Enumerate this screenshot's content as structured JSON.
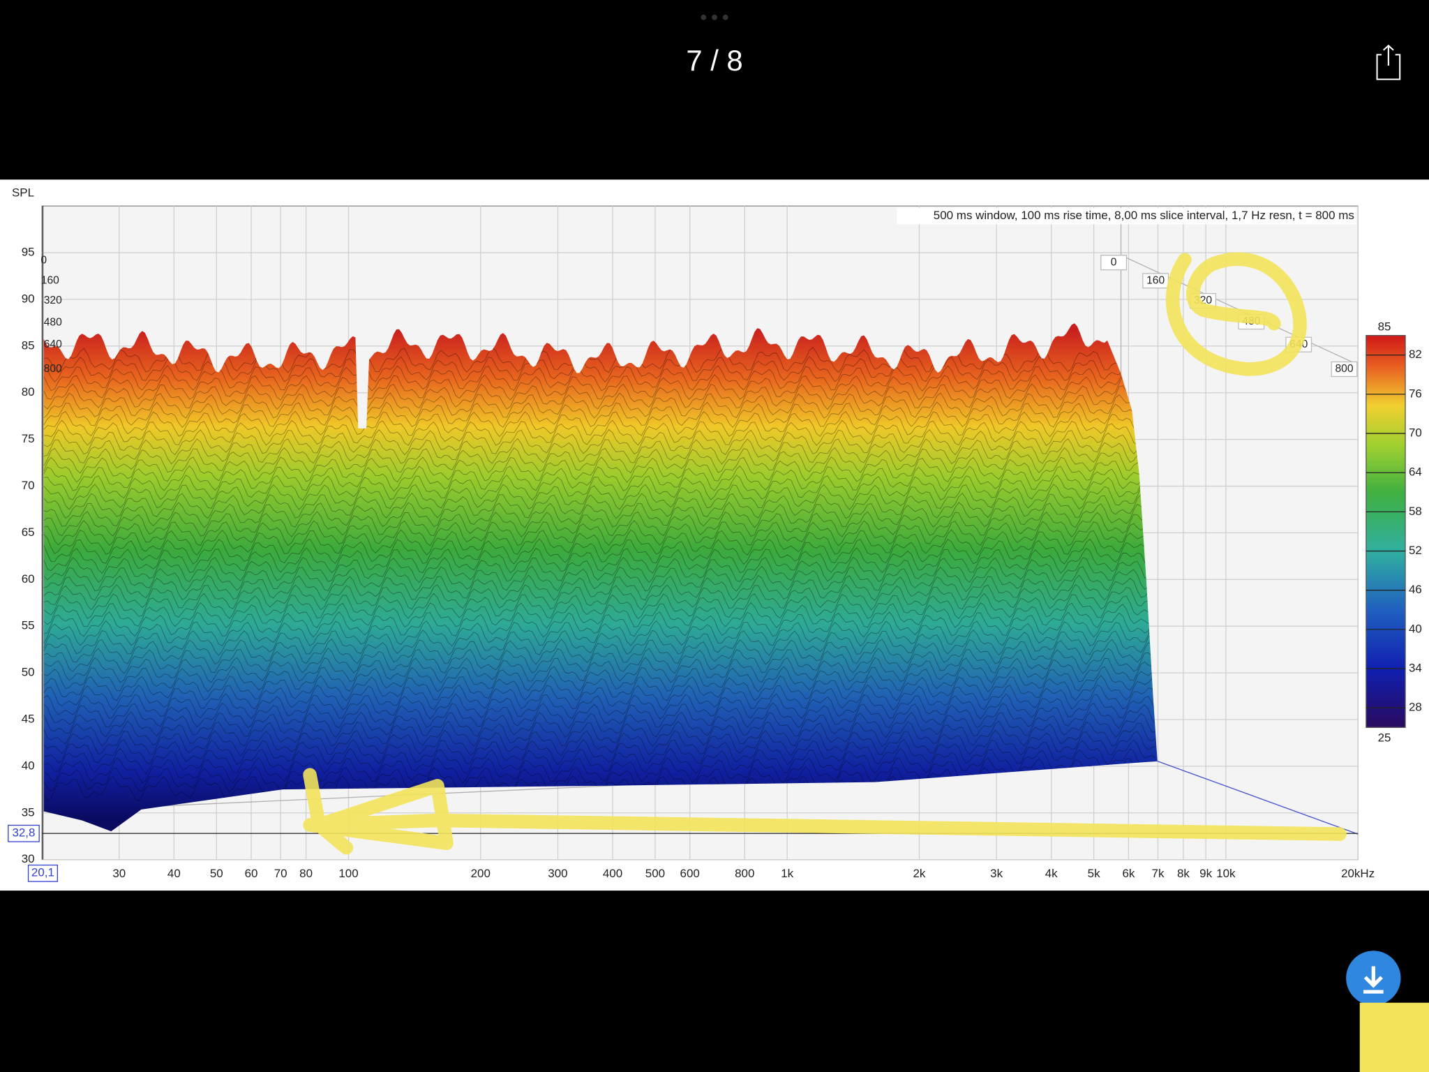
{
  "viewer": {
    "counter": "7 / 8"
  },
  "chart_data": {
    "type": "waterfall",
    "y_label": "SPL",
    "annotation": "500 ms window, 100 ms rise time, 8,00 ms slice interval, 1,7 Hz resn, t = 800 ms",
    "ylim": [
      30,
      100
    ],
    "yticks": [
      30,
      35,
      40,
      45,
      50,
      55,
      60,
      65,
      70,
      75,
      80,
      85,
      90,
      95
    ],
    "xlim": [
      20,
      20000
    ],
    "log_x": true,
    "xticks": [
      30,
      40,
      50,
      60,
      70,
      80,
      100,
      200,
      300,
      400,
      500,
      600,
      800,
      {
        "value": 1000,
        "label": "1k"
      },
      {
        "value": 2000,
        "label": "2k"
      },
      {
        "value": 3000,
        "label": "3k"
      },
      {
        "value": 4000,
        "label": "4k"
      },
      {
        "value": 5000,
        "label": "5k"
      },
      {
        "value": 6000,
        "label": "6k"
      },
      {
        "value": 7000,
        "label": "7k"
      },
      {
        "value": 8000,
        "label": "8k"
      },
      {
        "value": 9000,
        "label": "9k"
      },
      {
        "value": 10000,
        "label": "10k"
      },
      {
        "value": 20000,
        "label": "20kHz"
      }
    ],
    "zticks": [
      0,
      160,
      320,
      480,
      640,
      800
    ],
    "cursor": {
      "x": {
        "value": 20.1,
        "label": "20,1"
      },
      "y": {
        "value": 32.8,
        "label": "32,8"
      }
    },
    "clim": [
      25,
      85
    ],
    "cticks": [
      82,
      76,
      70,
      64,
      58,
      52,
      46,
      40,
      34,
      28
    ],
    "grid": true
  }
}
